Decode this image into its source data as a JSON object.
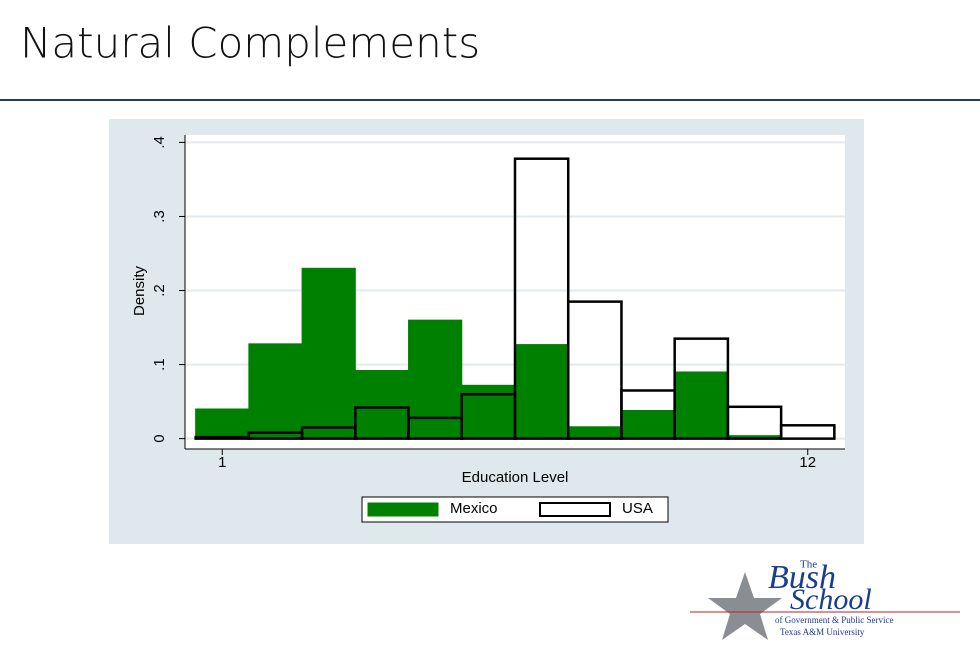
{
  "slide": {
    "title": "Natural Complements",
    "logo": {
      "the": "The",
      "bush": "Bush",
      "school": "School",
      "line1": "of Government & Public Service",
      "line2": "Texas A&M University"
    }
  },
  "chart_data": {
    "type": "histogram",
    "xlabel": "Education Level",
    "ylabel": "Density",
    "bins": [
      0.5,
      1.5,
      2.5,
      3.5,
      4.5,
      5.5,
      6.5,
      7.5,
      8.5,
      9.5,
      10.5,
      11.5,
      12.5
    ],
    "series": [
      {
        "name": "Mexico",
        "color": "#008000",
        "style": "filled",
        "values": [
          0.04,
          0.128,
          0.23,
          0.092,
          0.16,
          0.072,
          0.127,
          0.016,
          0.038,
          0.09,
          0.004,
          0
        ]
      },
      {
        "name": "USA",
        "color": "#000000",
        "style": "outline",
        "values": [
          0.002,
          0.008,
          0.015,
          0.042,
          0.028,
          0.06,
          0.378,
          0.185,
          0.065,
          0.135,
          0.043,
          0.018
        ]
      }
    ],
    "xlim": [
      0.3,
      12.7
    ],
    "xticks": [
      1,
      12
    ],
    "ylim": [
      -0.014,
      0.41
    ],
    "yticks": [
      0,
      {
        "value": 0.1,
        "label": ".1"
      },
      {
        "value": 0.2,
        "label": ".2"
      },
      {
        "value": 0.3,
        "label": ".3"
      },
      {
        "value": 0.4,
        "label": ".4"
      }
    ],
    "grid": true,
    "legend": "bottom"
  }
}
